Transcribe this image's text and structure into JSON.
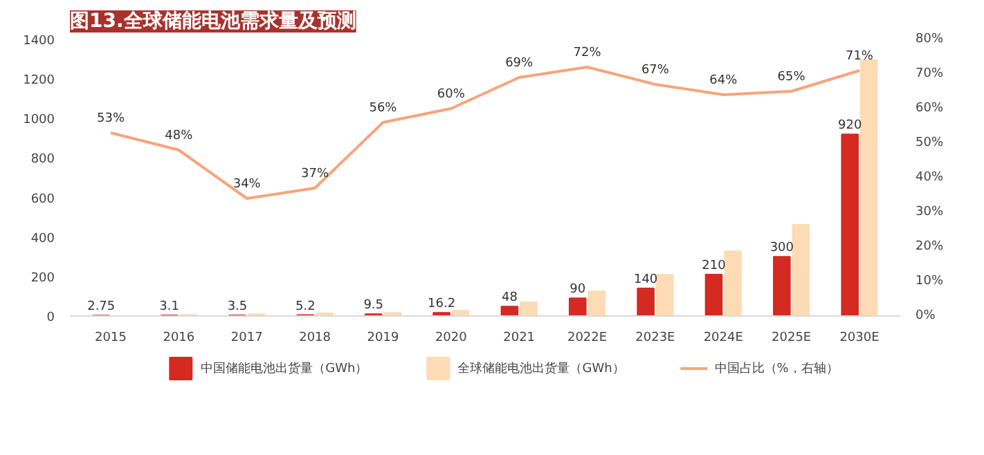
{
  "chart_data": {
    "type": "bar",
    "title": "图13.全球储能电池需求量及预测",
    "categories": [
      "2015",
      "2016",
      "2017",
      "2018",
      "2019",
      "2020",
      "2021",
      "2022E",
      "2023E",
      "2024E",
      "2025E",
      "2030E"
    ],
    "series": [
      {
        "name": "中国储能电池出货量（GWh）",
        "color": "#d42a22",
        "values": [
          2.75,
          3.1,
          3.5,
          5.2,
          9.5,
          16.2,
          48,
          90,
          140,
          210,
          300,
          920
        ],
        "value_labels": [
          "2.75",
          "3.1",
          "3.5",
          "5.2",
          "9.5",
          "16.2",
          "48",
          "90",
          "140",
          "210",
          "300",
          "920"
        ]
      },
      {
        "name": "全球储能电池出货量（GWh）",
        "color": "#fddbb5",
        "values": [
          null,
          6,
          10,
          14,
          17,
          27,
          70,
          125,
          209,
          328,
          462,
          1296
        ]
      },
      {
        "name": "中国占比（%，右轴）",
        "type": "line",
        "axis": "y2",
        "color": "#f7a47c",
        "values": [
          53,
          48,
          34,
          37,
          56,
          60,
          69,
          72,
          67,
          64,
          65,
          71
        ],
        "value_labels": [
          "53%",
          "48%",
          "34%",
          "37%",
          "56%",
          "60%",
          "69%",
          "72%",
          "67%",
          "64%",
          "65%",
          "71%"
        ]
      }
    ],
    "ylim": [
      0,
      1400
    ],
    "yticks": [
      0,
      200,
      400,
      600,
      800,
      1000,
      1200,
      1400
    ],
    "y2lim": [
      0,
      80
    ],
    "y2ticks": [
      {
        "value": 0,
        "label": "0%"
      },
      {
        "value": 10,
        "label": "10%"
      },
      {
        "value": 20,
        "label": "20%"
      },
      {
        "value": 30,
        "label": "30%"
      },
      {
        "value": 40,
        "label": "40%"
      },
      {
        "value": 50,
        "label": "50%"
      },
      {
        "value": 60,
        "label": "60%"
      },
      {
        "value": 70,
        "label": "70%"
      },
      {
        "value": 80,
        "label": "80%"
      }
    ],
    "grid": false,
    "legend": "bottom",
    "line_style": "solid",
    "marker": "none"
  }
}
